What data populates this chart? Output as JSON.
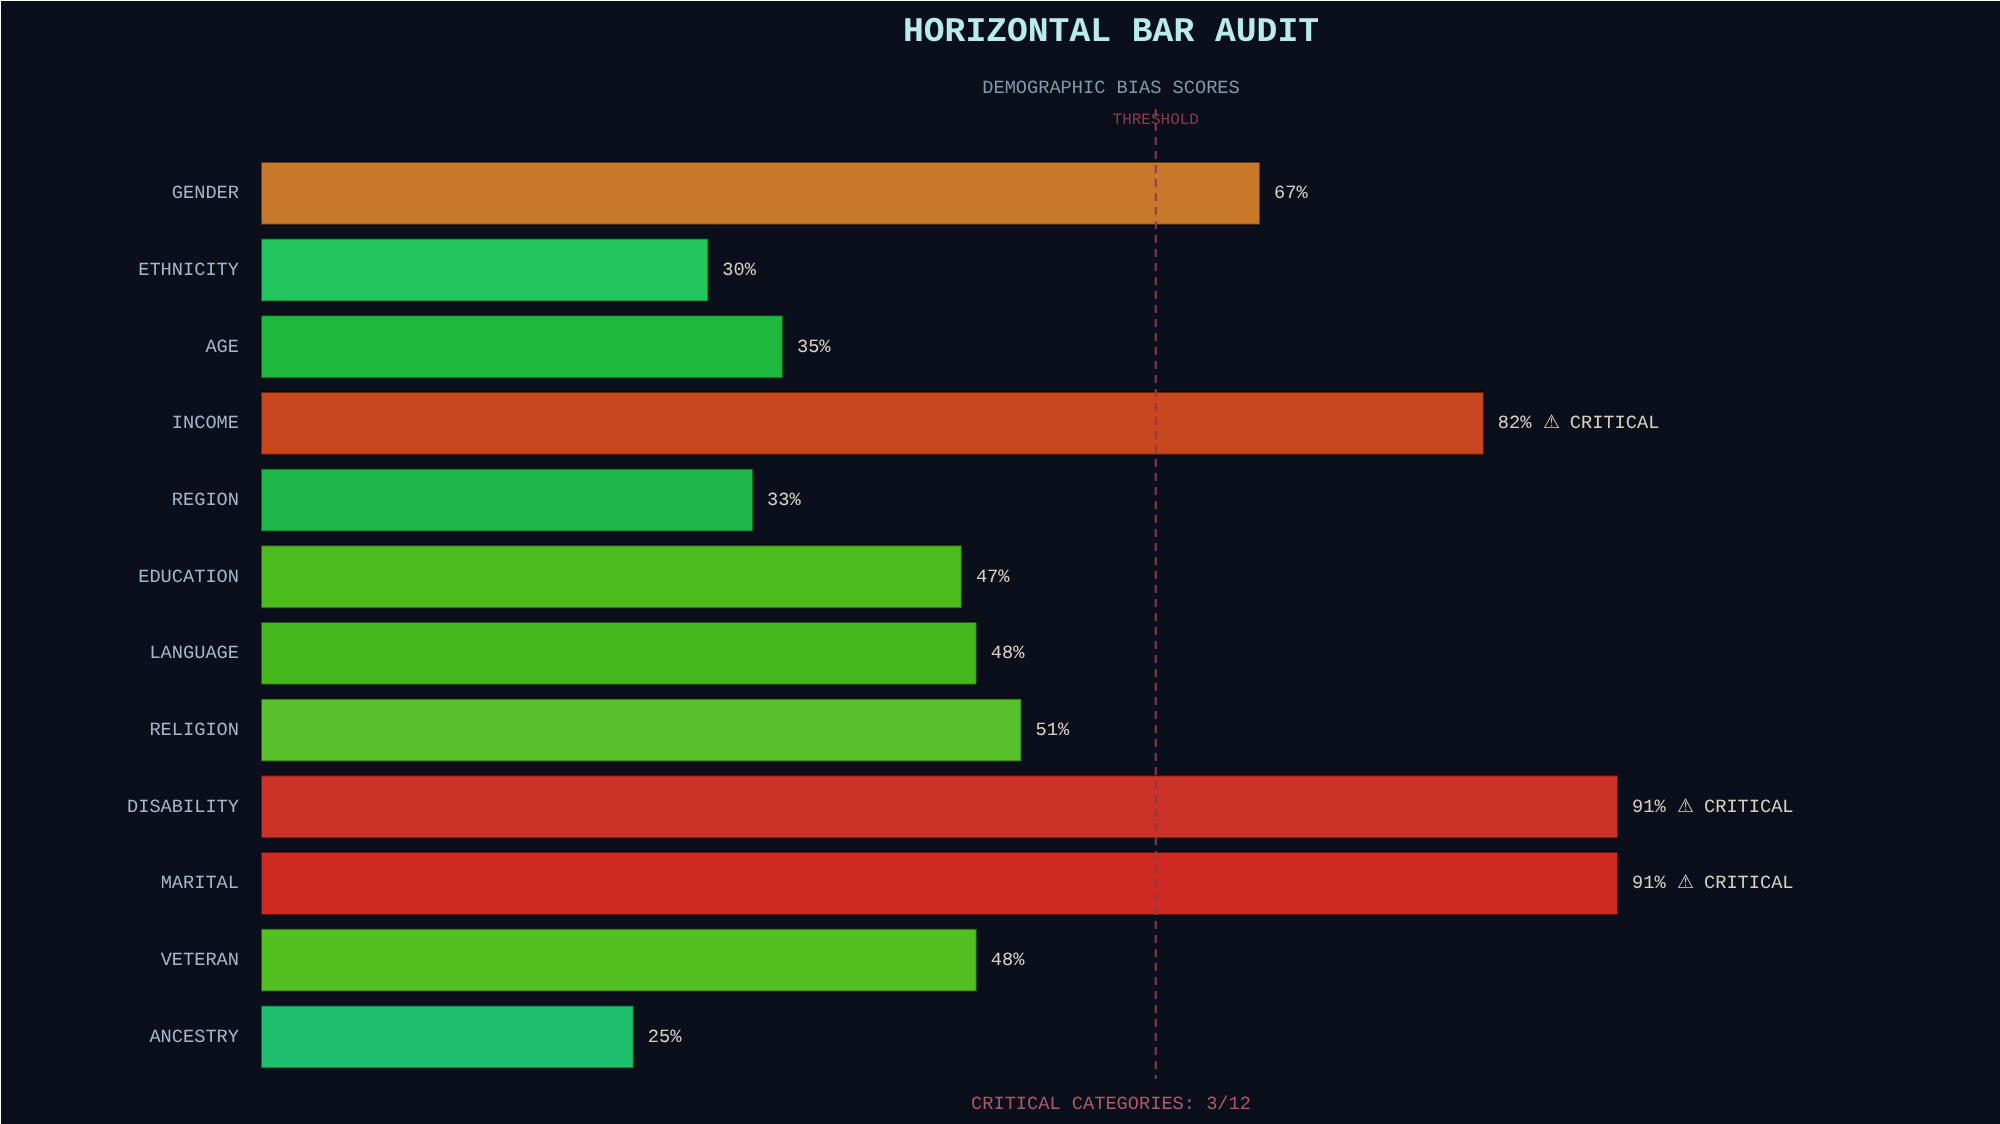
{
  "chart_data": {
    "type": "bar",
    "orientation": "horizontal",
    "title": "HORIZONTAL BAR AUDIT",
    "subtitle": "DEMOGRAPHIC BIAS SCORES",
    "categories": [
      "GENDER",
      "ETHNICITY",
      "AGE",
      "INCOME",
      "REGION",
      "EDUCATION",
      "LANGUAGE",
      "RELIGION",
      "DISABILITY",
      "MARITAL",
      "VETERAN",
      "ANCESTRY"
    ],
    "values": [
      67,
      30,
      35,
      82,
      33,
      47,
      48,
      51,
      91,
      91,
      48,
      25
    ],
    "value_labels": [
      "67%",
      "30%",
      "35%",
      "82%  ⚠ CRITICAL",
      "33%",
      "47%",
      "48%",
      "51%",
      "91%  ⚠ CRITICAL",
      "91%  ⚠ CRITICAL",
      "48%",
      "25%"
    ],
    "colors": [
      "#c8782a",
      "#22c55e",
      "#1db83c",
      "#c9471f",
      "#1eb84a",
      "#4cbb1e",
      "#45b81c",
      "#58c02a",
      "#cc3328",
      "#cc2a22",
      "#52c020",
      "#1fbf70"
    ],
    "xlim": [
      0,
      114
    ],
    "ref_lines": [
      {
        "axis": "x",
        "value": 60,
        "label": "THRESHOLD",
        "color": "#8a3a4c",
        "line_style": "dashed"
      }
    ],
    "annotations": [
      "CRITICAL CATEGORIES: 3/12"
    ],
    "grid": false
  }
}
